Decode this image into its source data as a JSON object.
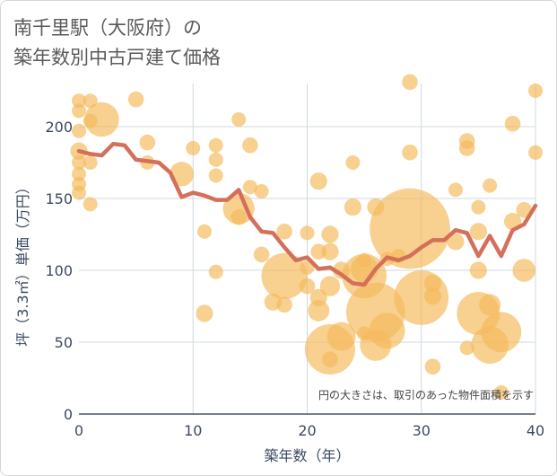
{
  "chart_data": {
    "type": "scatter",
    "title_lines": [
      "南千里駅（大阪府）の",
      "築年数別中古戸建て価格"
    ],
    "xlabel": "築年数（年）",
    "ylabel": "坪（3.3㎡）単価（万円）",
    "xlim": [
      0,
      40
    ],
    "ylim": [
      0,
      230
    ],
    "xticks": [
      0,
      10,
      20,
      30,
      40
    ],
    "yticks": [
      0,
      50,
      100,
      150,
      200
    ],
    "grid": true,
    "note": "円の大きさは、取引のあった物件面積を示す",
    "colors": {
      "bubble": "#f5b95c",
      "line": "#d4705a",
      "grid": "#cfd8e3",
      "axis": "#4b5563"
    },
    "series": [
      {
        "name": "transactions",
        "kind": "bubble",
        "points": [
          {
            "x": 0,
            "y": 218,
            "s": 1.0
          },
          {
            "x": 0,
            "y": 211,
            "s": 1.0
          },
          {
            "x": 0,
            "y": 197,
            "s": 1.0
          },
          {
            "x": 0,
            "y": 183,
            "s": 1.2
          },
          {
            "x": 0,
            "y": 175,
            "s": 1.0
          },
          {
            "x": 0,
            "y": 167,
            "s": 1.0
          },
          {
            "x": 0,
            "y": 160,
            "s": 1.0
          },
          {
            "x": 0,
            "y": 154,
            "s": 1.0
          },
          {
            "x": 1,
            "y": 218,
            "s": 1.0
          },
          {
            "x": 1,
            "y": 204,
            "s": 1.0
          },
          {
            "x": 1,
            "y": 175,
            "s": 1.0
          },
          {
            "x": 1,
            "y": 146,
            "s": 1.0
          },
          {
            "x": 2,
            "y": 205,
            "s": 2.4
          },
          {
            "x": 5,
            "y": 219,
            "s": 1.1
          },
          {
            "x": 6,
            "y": 189,
            "s": 1.1
          },
          {
            "x": 6,
            "y": 175,
            "s": 1.0
          },
          {
            "x": 9,
            "y": 167,
            "s": 1.7
          },
          {
            "x": 10,
            "y": 185,
            "s": 1.0
          },
          {
            "x": 11,
            "y": 127,
            "s": 1.0
          },
          {
            "x": 11,
            "y": 70,
            "s": 1.2
          },
          {
            "x": 12,
            "y": 187,
            "s": 1.0
          },
          {
            "x": 12,
            "y": 177,
            "s": 1.0
          },
          {
            "x": 12,
            "y": 166,
            "s": 1.0
          },
          {
            "x": 12,
            "y": 99,
            "s": 1.0
          },
          {
            "x": 14,
            "y": 205,
            "s": 1.0
          },
          {
            "x": 14,
            "y": 143,
            "s": 2.2
          },
          {
            "x": 14,
            "y": 137,
            "s": 1.1
          },
          {
            "x": 15,
            "y": 187,
            "s": 1.1
          },
          {
            "x": 15,
            "y": 158,
            "s": 1.0
          },
          {
            "x": 16,
            "y": 155,
            "s": 1.0
          },
          {
            "x": 16,
            "y": 111,
            "s": 1.1
          },
          {
            "x": 17,
            "y": 78,
            "s": 1.2
          },
          {
            "x": 18,
            "y": 127,
            "s": 1.1
          },
          {
            "x": 18,
            "y": 96,
            "s": 3.2
          },
          {
            "x": 18,
            "y": 76,
            "s": 1.1
          },
          {
            "x": 20,
            "y": 126,
            "s": 1.0
          },
          {
            "x": 20,
            "y": 102,
            "s": 1.0
          },
          {
            "x": 20,
            "y": 89,
            "s": 1.1
          },
          {
            "x": 21,
            "y": 162,
            "s": 1.2
          },
          {
            "x": 21,
            "y": 113,
            "s": 1.1
          },
          {
            "x": 21,
            "y": 81,
            "s": 1.2
          },
          {
            "x": 21,
            "y": 72,
            "s": 1.5
          },
          {
            "x": 22,
            "y": 125,
            "s": 1.2
          },
          {
            "x": 22,
            "y": 113,
            "s": 1.2
          },
          {
            "x": 22,
            "y": 89,
            "s": 1.4
          },
          {
            "x": 22,
            "y": 45,
            "s": 3.5
          },
          {
            "x": 22,
            "y": 38,
            "s": 1.1
          },
          {
            "x": 23,
            "y": 100,
            "s": 1.2
          },
          {
            "x": 23,
            "y": 54,
            "s": 2.0
          },
          {
            "x": 24,
            "y": 175,
            "s": 1.0
          },
          {
            "x": 24,
            "y": 144,
            "s": 1.2
          },
          {
            "x": 25,
            "y": 107,
            "s": 1.0
          },
          {
            "x": 25,
            "y": 101,
            "s": 1.9
          },
          {
            "x": 25,
            "y": 96,
            "s": 3.1
          },
          {
            "x": 25,
            "y": 56,
            "s": 1.0
          },
          {
            "x": 26,
            "y": 144,
            "s": 1.2
          },
          {
            "x": 26,
            "y": 71,
            "s": 4.1
          },
          {
            "x": 26,
            "y": 48,
            "s": 2.2
          },
          {
            "x": 27,
            "y": 108,
            "s": 1.0
          },
          {
            "x": 27,
            "y": 58,
            "s": 2.5
          },
          {
            "x": 28,
            "y": 110,
            "s": 1.0
          },
          {
            "x": 29,
            "y": 231,
            "s": 1.1
          },
          {
            "x": 29,
            "y": 182,
            "s": 1.1
          },
          {
            "x": 29,
            "y": 129,
            "s": 5.6
          },
          {
            "x": 30,
            "y": 81,
            "s": 3.8
          },
          {
            "x": 31,
            "y": 91,
            "s": 1.2
          },
          {
            "x": 31,
            "y": 82,
            "s": 1.2
          },
          {
            "x": 31,
            "y": 33,
            "s": 1.1
          },
          {
            "x": 33,
            "y": 156,
            "s": 1.0
          },
          {
            "x": 33,
            "y": 120,
            "s": 1.2
          },
          {
            "x": 34,
            "y": 190,
            "s": 1.1
          },
          {
            "x": 34,
            "y": 185,
            "s": 1.1
          },
          {
            "x": 34,
            "y": 46,
            "s": 1.0
          },
          {
            "x": 35,
            "y": 144,
            "s": 1.0
          },
          {
            "x": 35,
            "y": 127,
            "s": 1.2
          },
          {
            "x": 35,
            "y": 100,
            "s": 1.2
          },
          {
            "x": 35,
            "y": 70,
            "s": 3.0
          },
          {
            "x": 36,
            "y": 159,
            "s": 1.0
          },
          {
            "x": 36,
            "y": 76,
            "s": 1.5
          },
          {
            "x": 36,
            "y": 48,
            "s": 2.6
          },
          {
            "x": 37,
            "y": 57,
            "s": 2.8
          },
          {
            "x": 37,
            "y": 15,
            "s": 1.0
          },
          {
            "x": 38,
            "y": 202,
            "s": 1.1
          },
          {
            "x": 38,
            "y": 134,
            "s": 1.2
          },
          {
            "x": 39,
            "y": 142,
            "s": 1.1
          },
          {
            "x": 39,
            "y": 100,
            "s": 1.6
          },
          {
            "x": 40,
            "y": 225,
            "s": 1.0
          },
          {
            "x": 40,
            "y": 182,
            "s": 1.0
          }
        ]
      },
      {
        "name": "average",
        "kind": "line",
        "x": [
          0,
          1,
          2,
          3,
          4,
          5,
          6,
          7,
          8,
          9,
          10,
          11,
          12,
          13,
          14,
          15,
          16,
          17,
          18,
          19,
          20,
          21,
          22,
          23,
          24,
          25,
          26,
          27,
          28,
          29,
          30,
          31,
          32,
          33,
          34,
          35,
          36,
          37,
          38,
          39,
          40
        ],
        "values": [
          183,
          181,
          180,
          188,
          187,
          177,
          176,
          175,
          168,
          151,
          154,
          152,
          149,
          149,
          156,
          137,
          127,
          126,
          116,
          107,
          109,
          101,
          102,
          97,
          91,
          90,
          101,
          109,
          107,
          110,
          116,
          121,
          121,
          128,
          126,
          110,
          124,
          110,
          128,
          132,
          145
        ]
      }
    ]
  }
}
